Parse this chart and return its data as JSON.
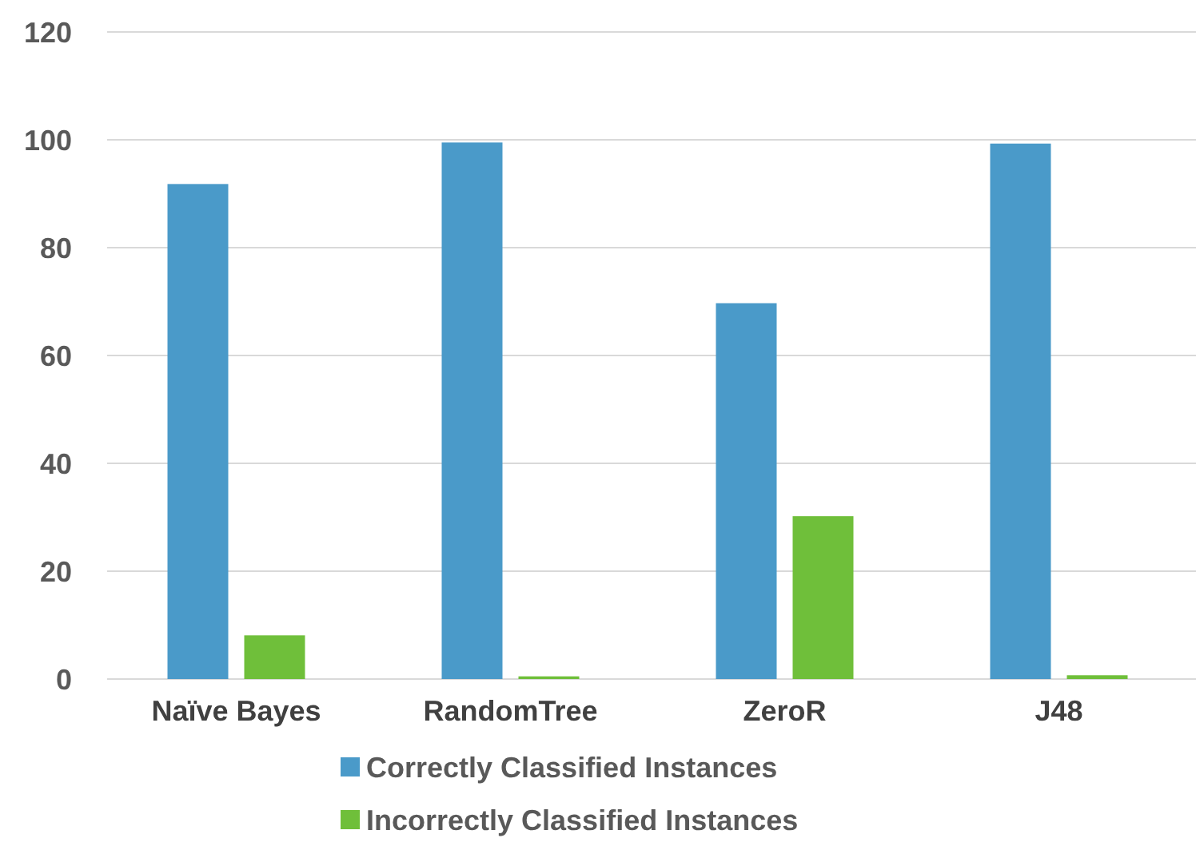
{
  "chart_data": {
    "type": "bar",
    "categories": [
      "Naïve Bayes",
      "RandomTree",
      "ZeroR",
      "J48"
    ],
    "series": [
      {
        "name": "Correctly Classified Instances",
        "color": "#4a9ac9",
        "values": [
          91.8,
          99.5,
          69.7,
          99.3
        ]
      },
      {
        "name": "Incorrectly Classified Instances",
        "color": "#6fbf3a",
        "values": [
          8.1,
          0.5,
          30.2,
          0.7
        ]
      }
    ],
    "ylim": [
      0,
      120
    ],
    "yticks": [
      0,
      20,
      40,
      60,
      80,
      100,
      120
    ],
    "grid": "y",
    "legend": "bottom"
  }
}
